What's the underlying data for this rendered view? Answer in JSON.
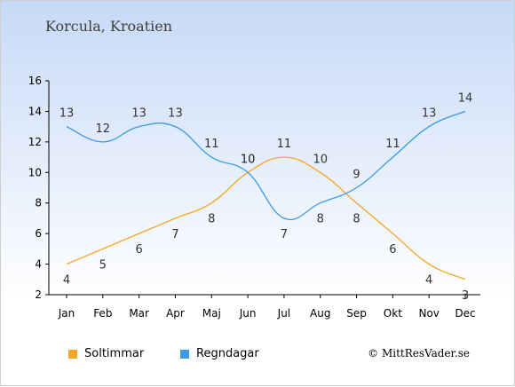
{
  "title": "Korcula, Kroatien",
  "copyright": "© MittResVader.se",
  "chart_data": {
    "type": "line",
    "categories": [
      "Jan",
      "Feb",
      "Mar",
      "Apr",
      "Maj",
      "Jun",
      "Jul",
      "Aug",
      "Sep",
      "Okt",
      "Nov",
      "Dec"
    ],
    "series": [
      {
        "name": "Soltimmar",
        "color": "#f5a623",
        "values": [
          4,
          5,
          6,
          7,
          8,
          10,
          11,
          10,
          8,
          6,
          4,
          3
        ]
      },
      {
        "name": "Regndagar",
        "color": "#3a9ae8",
        "values": [
          13,
          12,
          13,
          13,
          11,
          10,
          7,
          8,
          9,
          11,
          13,
          14
        ]
      }
    ],
    "ylim": [
      2,
      16
    ],
    "yticks": [
      2,
      4,
      6,
      8,
      10,
      12,
      14,
      16
    ],
    "grid": false,
    "legend": "bottom-left"
  }
}
